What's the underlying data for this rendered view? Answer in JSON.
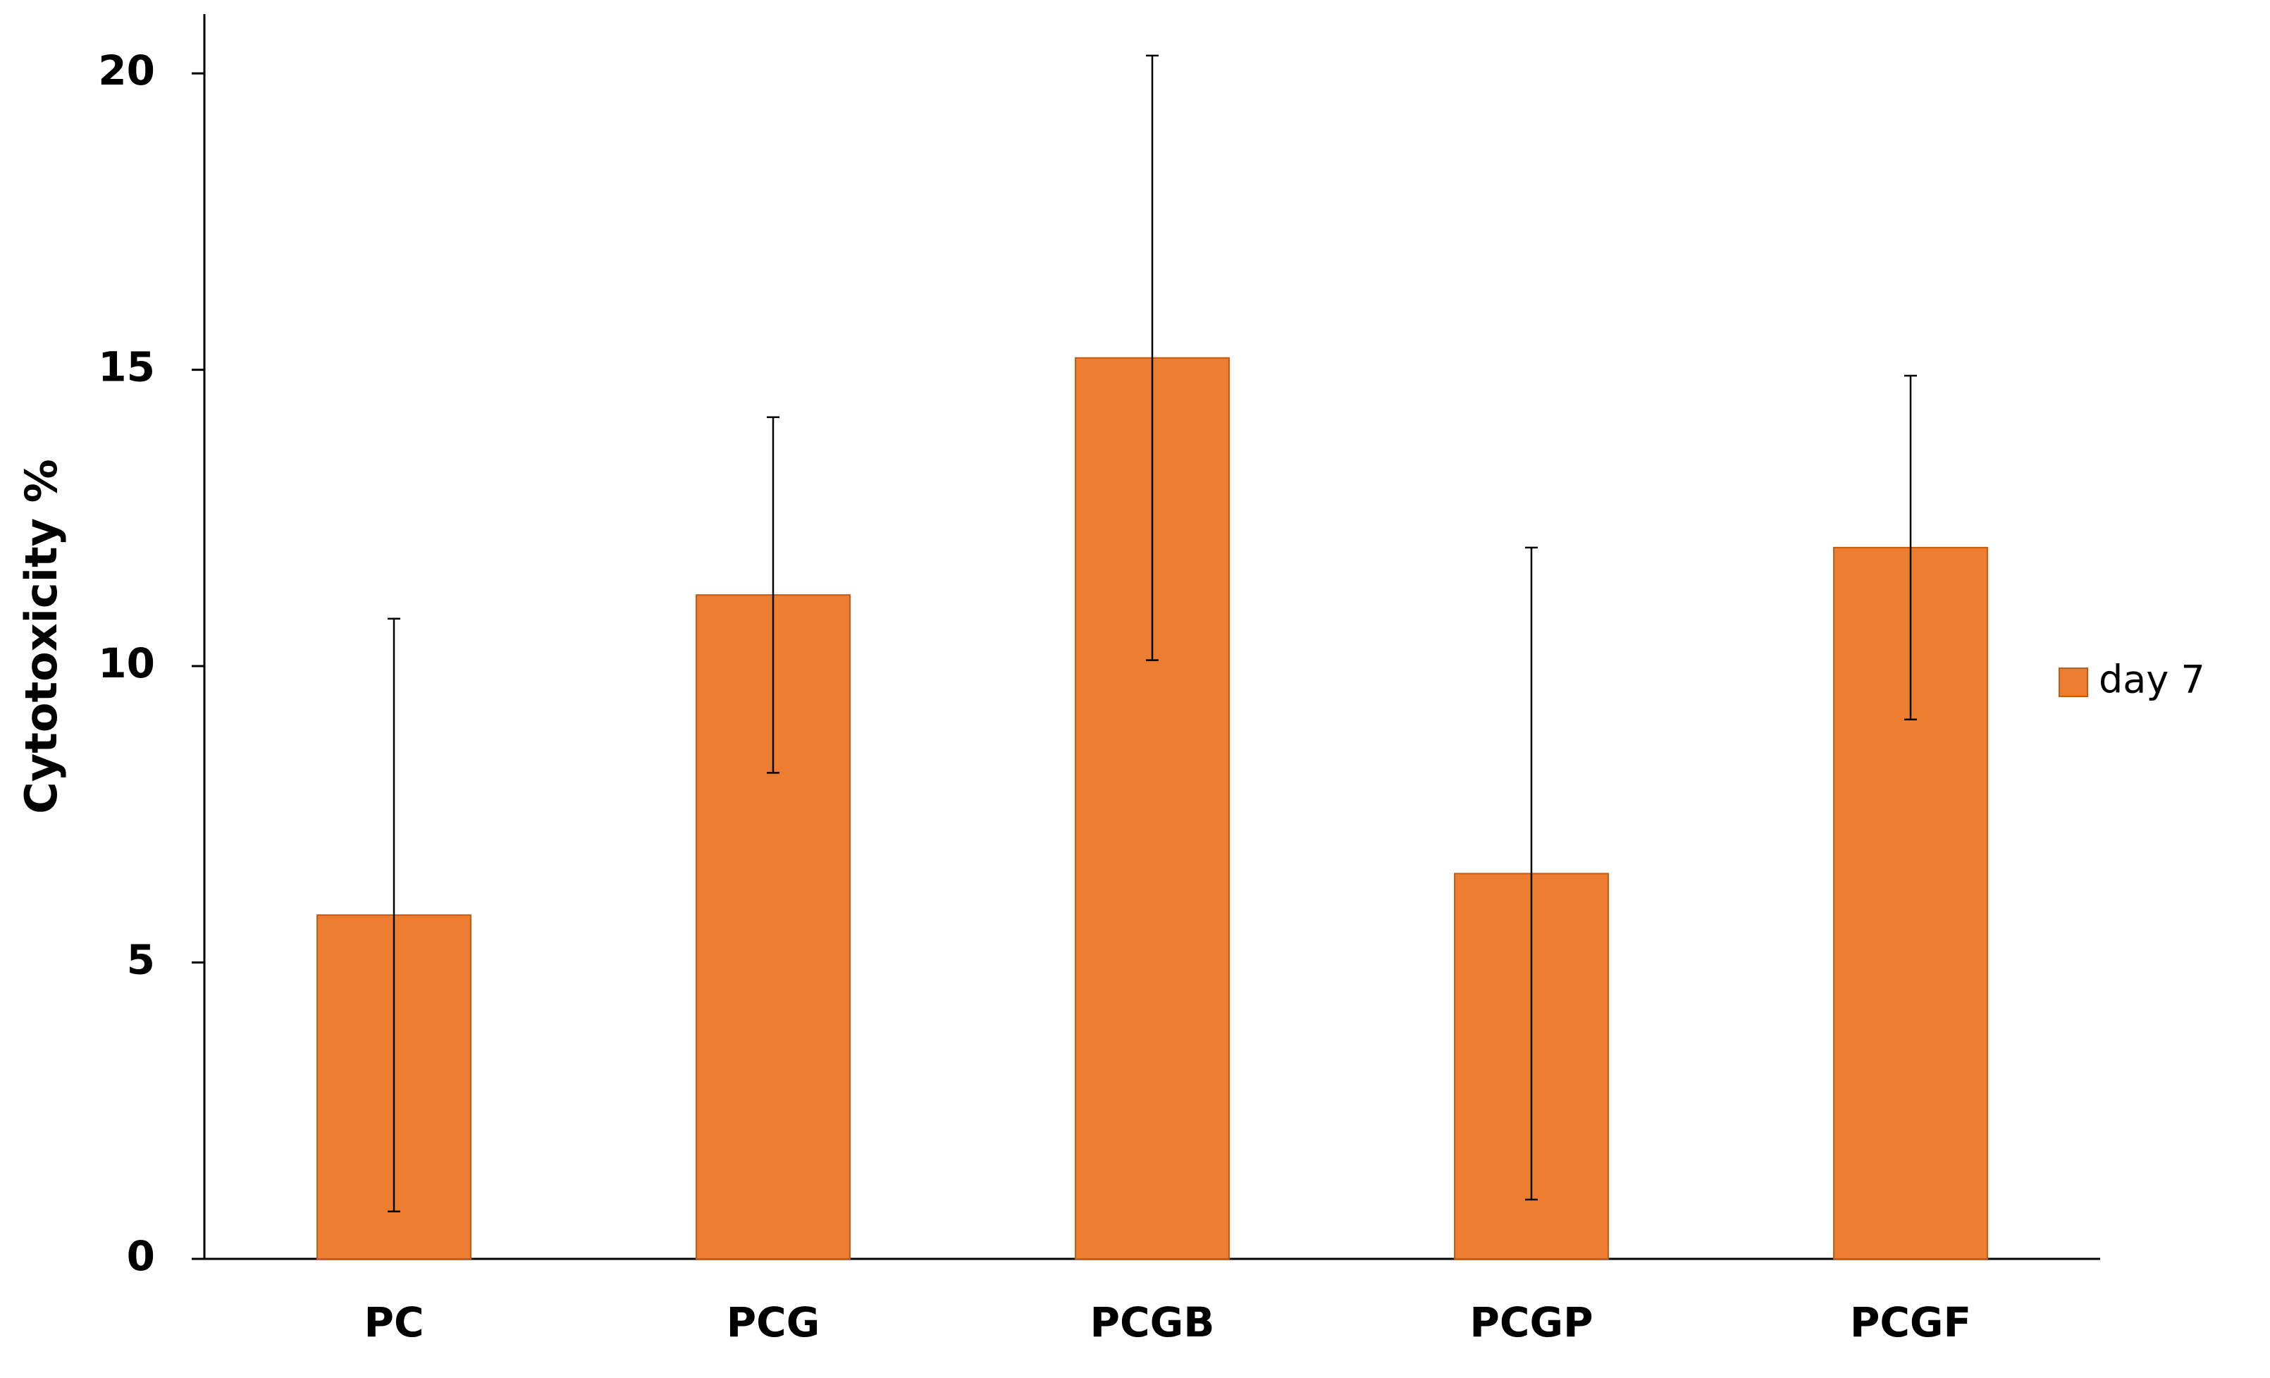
{
  "colors": {
    "bar_fill": "#ED7D31",
    "bar_stroke": "#C55A11",
    "axis": "#000000",
    "error_bar": "#000000"
  },
  "chart_data": {
    "type": "bar",
    "title": "",
    "xlabel": "",
    "ylabel": "Cytotoxicity %",
    "categories": [
      "PC",
      "PCG",
      "PCGB",
      "PCGP",
      "PCGF"
    ],
    "series": [
      {
        "name": "day 7",
        "values": [
          5.8,
          11.2,
          15.2,
          6.5,
          12.0
        ],
        "error": [
          5.0,
          3.0,
          5.1,
          5.5,
          2.9
        ]
      }
    ],
    "ylim": [
      0,
      21
    ],
    "yticks": [
      0,
      5,
      10,
      15,
      20
    ],
    "ytick_labels": [
      "0",
      "5",
      "10",
      "15",
      "20"
    ],
    "grid": false,
    "legend_position": "right"
  }
}
